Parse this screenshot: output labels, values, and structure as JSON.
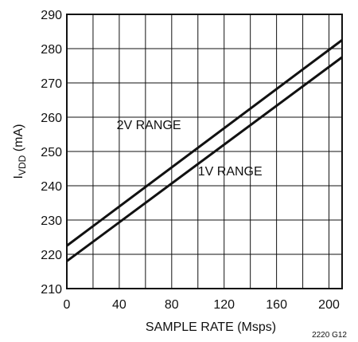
{
  "chart_data": {
    "type": "line",
    "title": "",
    "xlabel": "SAMPLE RATE (Msps)",
    "ylabel_prefix": "I",
    "ylabel_sub": "VDD",
    "ylabel_suffix": " (mA)",
    "xlim": [
      0,
      210
    ],
    "ylim": [
      210,
      290
    ],
    "xticks": [
      0,
      40,
      80,
      120,
      160,
      200
    ],
    "yticks": [
      210,
      220,
      230,
      240,
      250,
      260,
      270,
      280,
      290
    ],
    "grid": true,
    "series": [
      {
        "name": "2V RANGE",
        "x": [
          0,
          210
        ],
        "y": [
          222.5,
          282.5
        ]
      },
      {
        "name": "1V RANGE",
        "x": [
          0,
          210
        ],
        "y": [
          218,
          277.5
        ]
      }
    ]
  },
  "figure_id": "2220 G12"
}
